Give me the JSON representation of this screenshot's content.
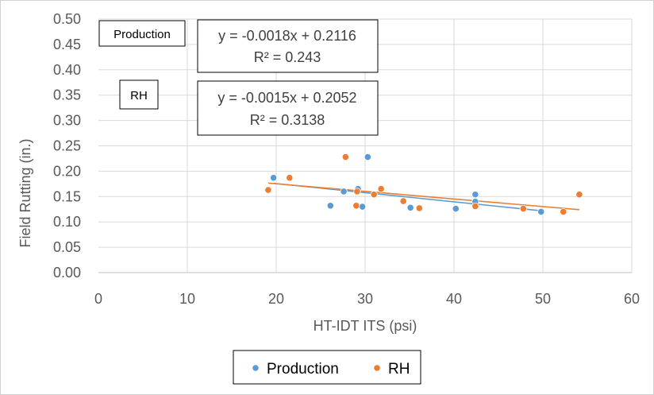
{
  "chart_data": {
    "type": "scatter",
    "title": "",
    "xlabel": "HT-IDT ITS (psi)",
    "ylabel": "Field Rutting (in.)",
    "xlim": [
      0,
      60
    ],
    "ylim": [
      0,
      0.5
    ],
    "x_ticks": [
      "0",
      "10",
      "20",
      "30",
      "40",
      "50",
      "60"
    ],
    "y_ticks": [
      "0.00",
      "0.05",
      "0.10",
      "0.15",
      "0.20",
      "0.25",
      "0.30",
      "0.35",
      "0.40",
      "0.45",
      "0.50"
    ],
    "grid": true,
    "legend_position": "bottom",
    "series": [
      {
        "name": "Production",
        "color": "#5B9BD5",
        "points": [
          {
            "x": 19.7,
            "y": 0.187
          },
          {
            "x": 26.1,
            "y": 0.132
          },
          {
            "x": 27.6,
            "y": 0.16
          },
          {
            "x": 29.2,
            "y": 0.165
          },
          {
            "x": 29.7,
            "y": 0.13
          },
          {
            "x": 30.3,
            "y": 0.228
          },
          {
            "x": 35.1,
            "y": 0.128
          },
          {
            "x": 40.2,
            "y": 0.126
          },
          {
            "x": 42.4,
            "y": 0.154
          },
          {
            "x": 42.4,
            "y": 0.14
          },
          {
            "x": 49.8,
            "y": 0.12
          }
        ],
        "trendline": {
          "slope": -0.0018,
          "intercept": 0.2116,
          "x_range": [
            19.7,
            49.8
          ]
        },
        "equation": "y = -0.0018x + 0.2116",
        "r_squared": "R² = 0.243",
        "annotation_label": "Production"
      },
      {
        "name": "RH",
        "color": "#ED7D31",
        "points": [
          {
            "x": 19.1,
            "y": 0.163
          },
          {
            "x": 21.5,
            "y": 0.187
          },
          {
            "x": 27.8,
            "y": 0.228
          },
          {
            "x": 29.0,
            "y": 0.132
          },
          {
            "x": 29.1,
            "y": 0.16
          },
          {
            "x": 31.0,
            "y": 0.154
          },
          {
            "x": 31.8,
            "y": 0.165
          },
          {
            "x": 34.3,
            "y": 0.141
          },
          {
            "x": 36.1,
            "y": 0.127
          },
          {
            "x": 42.4,
            "y": 0.131
          },
          {
            "x": 47.8,
            "y": 0.126
          },
          {
            "x": 52.3,
            "y": 0.12
          },
          {
            "x": 54.1,
            "y": 0.154
          }
        ],
        "trendline": {
          "slope": -0.0015,
          "intercept": 0.2052,
          "x_range": [
            19.1,
            54.1
          ]
        },
        "equation": "y = -0.0015x + 0.2052",
        "r_squared": "R² = 0.3138",
        "annotation_label": "RH"
      }
    ]
  }
}
